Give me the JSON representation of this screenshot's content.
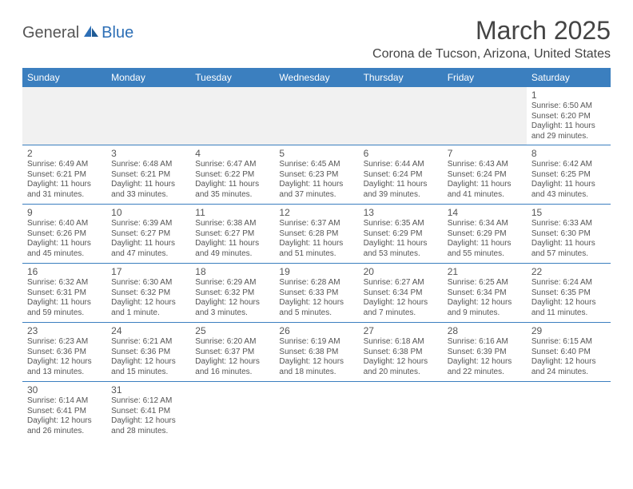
{
  "logo": {
    "part1": "General",
    "part2": "Blue"
  },
  "title": "March 2025",
  "location": "Corona de Tucson, Arizona, United States",
  "colors": {
    "header_bg": "#3b7fbf",
    "header_text": "#ffffff",
    "border": "#3b7fbf",
    "text": "#555555",
    "logo_gray": "#555555",
    "logo_blue": "#2d6fb6",
    "empty_bg": "#f1f1f1"
  },
  "day_headers": [
    "Sunday",
    "Monday",
    "Tuesday",
    "Wednesday",
    "Thursday",
    "Friday",
    "Saturday"
  ],
  "weeks": [
    [
      null,
      null,
      null,
      null,
      null,
      null,
      {
        "n": "1",
        "sr": "Sunrise: 6:50 AM",
        "ss": "Sunset: 6:20 PM",
        "dl": "Daylight: 11 hours and 29 minutes."
      }
    ],
    [
      {
        "n": "2",
        "sr": "Sunrise: 6:49 AM",
        "ss": "Sunset: 6:21 PM",
        "dl": "Daylight: 11 hours and 31 minutes."
      },
      {
        "n": "3",
        "sr": "Sunrise: 6:48 AM",
        "ss": "Sunset: 6:21 PM",
        "dl": "Daylight: 11 hours and 33 minutes."
      },
      {
        "n": "4",
        "sr": "Sunrise: 6:47 AM",
        "ss": "Sunset: 6:22 PM",
        "dl": "Daylight: 11 hours and 35 minutes."
      },
      {
        "n": "5",
        "sr": "Sunrise: 6:45 AM",
        "ss": "Sunset: 6:23 PM",
        "dl": "Daylight: 11 hours and 37 minutes."
      },
      {
        "n": "6",
        "sr": "Sunrise: 6:44 AM",
        "ss": "Sunset: 6:24 PM",
        "dl": "Daylight: 11 hours and 39 minutes."
      },
      {
        "n": "7",
        "sr": "Sunrise: 6:43 AM",
        "ss": "Sunset: 6:24 PM",
        "dl": "Daylight: 11 hours and 41 minutes."
      },
      {
        "n": "8",
        "sr": "Sunrise: 6:42 AM",
        "ss": "Sunset: 6:25 PM",
        "dl": "Daylight: 11 hours and 43 minutes."
      }
    ],
    [
      {
        "n": "9",
        "sr": "Sunrise: 6:40 AM",
        "ss": "Sunset: 6:26 PM",
        "dl": "Daylight: 11 hours and 45 minutes."
      },
      {
        "n": "10",
        "sr": "Sunrise: 6:39 AM",
        "ss": "Sunset: 6:27 PM",
        "dl": "Daylight: 11 hours and 47 minutes."
      },
      {
        "n": "11",
        "sr": "Sunrise: 6:38 AM",
        "ss": "Sunset: 6:27 PM",
        "dl": "Daylight: 11 hours and 49 minutes."
      },
      {
        "n": "12",
        "sr": "Sunrise: 6:37 AM",
        "ss": "Sunset: 6:28 PM",
        "dl": "Daylight: 11 hours and 51 minutes."
      },
      {
        "n": "13",
        "sr": "Sunrise: 6:35 AM",
        "ss": "Sunset: 6:29 PM",
        "dl": "Daylight: 11 hours and 53 minutes."
      },
      {
        "n": "14",
        "sr": "Sunrise: 6:34 AM",
        "ss": "Sunset: 6:29 PM",
        "dl": "Daylight: 11 hours and 55 minutes."
      },
      {
        "n": "15",
        "sr": "Sunrise: 6:33 AM",
        "ss": "Sunset: 6:30 PM",
        "dl": "Daylight: 11 hours and 57 minutes."
      }
    ],
    [
      {
        "n": "16",
        "sr": "Sunrise: 6:32 AM",
        "ss": "Sunset: 6:31 PM",
        "dl": "Daylight: 11 hours and 59 minutes."
      },
      {
        "n": "17",
        "sr": "Sunrise: 6:30 AM",
        "ss": "Sunset: 6:32 PM",
        "dl": "Daylight: 12 hours and 1 minute."
      },
      {
        "n": "18",
        "sr": "Sunrise: 6:29 AM",
        "ss": "Sunset: 6:32 PM",
        "dl": "Daylight: 12 hours and 3 minutes."
      },
      {
        "n": "19",
        "sr": "Sunrise: 6:28 AM",
        "ss": "Sunset: 6:33 PM",
        "dl": "Daylight: 12 hours and 5 minutes."
      },
      {
        "n": "20",
        "sr": "Sunrise: 6:27 AM",
        "ss": "Sunset: 6:34 PM",
        "dl": "Daylight: 12 hours and 7 minutes."
      },
      {
        "n": "21",
        "sr": "Sunrise: 6:25 AM",
        "ss": "Sunset: 6:34 PM",
        "dl": "Daylight: 12 hours and 9 minutes."
      },
      {
        "n": "22",
        "sr": "Sunrise: 6:24 AM",
        "ss": "Sunset: 6:35 PM",
        "dl": "Daylight: 12 hours and 11 minutes."
      }
    ],
    [
      {
        "n": "23",
        "sr": "Sunrise: 6:23 AM",
        "ss": "Sunset: 6:36 PM",
        "dl": "Daylight: 12 hours and 13 minutes."
      },
      {
        "n": "24",
        "sr": "Sunrise: 6:21 AM",
        "ss": "Sunset: 6:36 PM",
        "dl": "Daylight: 12 hours and 15 minutes."
      },
      {
        "n": "25",
        "sr": "Sunrise: 6:20 AM",
        "ss": "Sunset: 6:37 PM",
        "dl": "Daylight: 12 hours and 16 minutes."
      },
      {
        "n": "26",
        "sr": "Sunrise: 6:19 AM",
        "ss": "Sunset: 6:38 PM",
        "dl": "Daylight: 12 hours and 18 minutes."
      },
      {
        "n": "27",
        "sr": "Sunrise: 6:18 AM",
        "ss": "Sunset: 6:38 PM",
        "dl": "Daylight: 12 hours and 20 minutes."
      },
      {
        "n": "28",
        "sr": "Sunrise: 6:16 AM",
        "ss": "Sunset: 6:39 PM",
        "dl": "Daylight: 12 hours and 22 minutes."
      },
      {
        "n": "29",
        "sr": "Sunrise: 6:15 AM",
        "ss": "Sunset: 6:40 PM",
        "dl": "Daylight: 12 hours and 24 minutes."
      }
    ],
    [
      {
        "n": "30",
        "sr": "Sunrise: 6:14 AM",
        "ss": "Sunset: 6:41 PM",
        "dl": "Daylight: 12 hours and 26 minutes."
      },
      {
        "n": "31",
        "sr": "Sunrise: 6:12 AM",
        "ss": "Sunset: 6:41 PM",
        "dl": "Daylight: 12 hours and 28 minutes."
      },
      null,
      null,
      null,
      null,
      null
    ]
  ]
}
